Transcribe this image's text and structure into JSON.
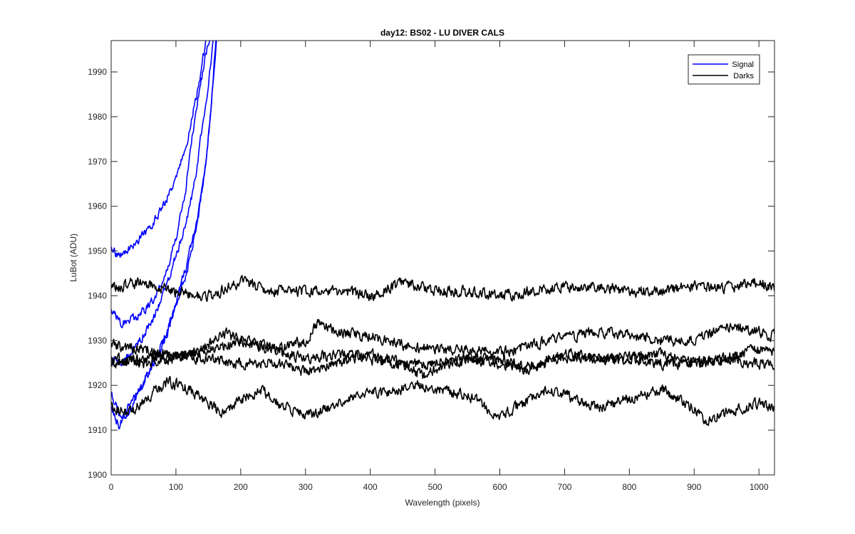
{
  "chart_data": {
    "type": "line",
    "title": "day12: BS02 - LU DIVER CALS",
    "xlabel": "Wavelength (pixels)",
    "ylabel": "LuBot (ADU)",
    "xlim": [
      0,
      1024
    ],
    "ylim": [
      1900,
      1997
    ],
    "xticks": [
      0,
      100,
      200,
      300,
      400,
      500,
      600,
      700,
      800,
      900,
      1000
    ],
    "yticks": [
      1900,
      1910,
      1920,
      1930,
      1940,
      1950,
      1960,
      1970,
      1980,
      1990
    ],
    "grid": false,
    "legend": {
      "position": "top-right",
      "entries": [
        {
          "label": "Signal",
          "color": "#0000ff"
        },
        {
          "label": "Darks",
          "color": "#000000"
        }
      ]
    },
    "series": [
      {
        "group": "Signal",
        "color": "#0000ff",
        "noise": 0.9,
        "seed": 11,
        "points": [
          [
            0,
            1951
          ],
          [
            10,
            1949
          ],
          [
            30,
            1951
          ],
          [
            60,
            1955
          ],
          [
            80,
            1960
          ],
          [
            100,
            1966
          ],
          [
            115,
            1973
          ],
          [
            125,
            1980
          ],
          [
            135,
            1987
          ],
          [
            142,
            1993
          ],
          [
            147,
            1998
          ]
        ]
      },
      {
        "group": "Signal",
        "color": "#0000ff",
        "noise": 0.9,
        "seed": 12,
        "points": [
          [
            0,
            1937
          ],
          [
            15,
            1934
          ],
          [
            40,
            1935
          ],
          [
            65,
            1939
          ],
          [
            85,
            1945
          ],
          [
            100,
            1953
          ],
          [
            115,
            1964
          ],
          [
            125,
            1975
          ],
          [
            135,
            1985
          ],
          [
            145,
            1993
          ],
          [
            152,
            1998
          ]
        ]
      },
      {
        "group": "Signal",
        "color": "#0000ff",
        "noise": 0.9,
        "seed": 13,
        "points": [
          [
            0,
            1926
          ],
          [
            15,
            1925
          ],
          [
            40,
            1929
          ],
          [
            65,
            1935
          ],
          [
            85,
            1942
          ],
          [
            100,
            1949
          ],
          [
            115,
            1956
          ],
          [
            130,
            1966
          ],
          [
            140,
            1977
          ],
          [
            150,
            1987
          ],
          [
            158,
            1998
          ]
        ]
      },
      {
        "group": "Signal",
        "color": "#0000ff",
        "noise": 0.9,
        "seed": 14,
        "points": [
          [
            0,
            1918
          ],
          [
            15,
            1913
          ],
          [
            35,
            1917
          ],
          [
            60,
            1923
          ],
          [
            85,
            1931
          ],
          [
            100,
            1938
          ],
          [
            115,
            1946
          ],
          [
            130,
            1955
          ],
          [
            145,
            1968
          ],
          [
            155,
            1983
          ],
          [
            162,
            1998
          ]
        ]
      },
      {
        "group": "Signal",
        "color": "#0000ff",
        "noise": 0.9,
        "seed": 15,
        "points": [
          [
            0,
            1915
          ],
          [
            12,
            1911
          ],
          [
            30,
            1915
          ],
          [
            55,
            1922
          ],
          [
            80,
            1930
          ],
          [
            100,
            1938
          ],
          [
            118,
            1946
          ],
          [
            135,
            1958
          ],
          [
            148,
            1972
          ],
          [
            158,
            1988
          ],
          [
            163,
            1998
          ]
        ]
      },
      {
        "group": "Darks",
        "color": "#000000",
        "noise": 1.2,
        "seed": 21,
        "points": [
          [
            0,
            1942
          ],
          [
            50,
            1943
          ],
          [
            100,
            1941
          ],
          [
            150,
            1940
          ],
          [
            200,
            1943
          ],
          [
            250,
            1941
          ],
          [
            300,
            1941
          ],
          [
            350,
            1941
          ],
          [
            400,
            1940
          ],
          [
            450,
            1943
          ],
          [
            500,
            1941
          ],
          [
            550,
            1941
          ],
          [
            600,
            1940
          ],
          [
            650,
            1941
          ],
          [
            700,
            1942
          ],
          [
            750,
            1942
          ],
          [
            800,
            1941
          ],
          [
            850,
            1941
          ],
          [
            900,
            1942
          ],
          [
            950,
            1942
          ],
          [
            1000,
            1943
          ],
          [
            1024,
            1942
          ]
        ]
      },
      {
        "group": "Darks",
        "color": "#000000",
        "noise": 1.2,
        "seed": 22,
        "points": [
          [
            0,
            1929
          ],
          [
            60,
            1928
          ],
          [
            100,
            1926
          ],
          [
            150,
            1928
          ],
          [
            200,
            1930
          ],
          [
            250,
            1928
          ],
          [
            300,
            1930
          ],
          [
            320,
            1934
          ],
          [
            350,
            1932
          ],
          [
            400,
            1931
          ],
          [
            450,
            1929
          ],
          [
            500,
            1928
          ],
          [
            550,
            1928
          ],
          [
            600,
            1927
          ],
          [
            650,
            1929
          ],
          [
            700,
            1931
          ],
          [
            760,
            1932
          ],
          [
            800,
            1931
          ],
          [
            850,
            1930
          ],
          [
            900,
            1930
          ],
          [
            950,
            1933
          ],
          [
            1000,
            1932
          ],
          [
            1024,
            1931
          ]
        ]
      },
      {
        "group": "Darks",
        "color": "#000000",
        "noise": 1.2,
        "seed": 23,
        "points": [
          [
            0,
            1926
          ],
          [
            50,
            1925
          ],
          [
            100,
            1926
          ],
          [
            150,
            1929
          ],
          [
            170,
            1932
          ],
          [
            200,
            1930
          ],
          [
            250,
            1928
          ],
          [
            300,
            1926
          ],
          [
            350,
            1927
          ],
          [
            400,
            1926
          ],
          [
            450,
            1924
          ],
          [
            500,
            1925
          ],
          [
            550,
            1926
          ],
          [
            600,
            1925
          ],
          [
            650,
            1924
          ],
          [
            700,
            1927
          ],
          [
            750,
            1926
          ],
          [
            800,
            1926
          ],
          [
            850,
            1925
          ],
          [
            900,
            1925
          ],
          [
            950,
            1926
          ],
          [
            1000,
            1928
          ],
          [
            1024,
            1927
          ]
        ]
      },
      {
        "group": "Darks",
        "color": "#000000",
        "noise": 1.2,
        "seed": 24,
        "points": [
          [
            0,
            1925
          ],
          [
            50,
            1926
          ],
          [
            100,
            1927
          ],
          [
            150,
            1926
          ],
          [
            200,
            1925
          ],
          [
            250,
            1925
          ],
          [
            300,
            1923
          ],
          [
            350,
            1925
          ],
          [
            400,
            1927
          ],
          [
            450,
            1925
          ],
          [
            480,
            1922
          ],
          [
            520,
            1925
          ],
          [
            550,
            1926
          ],
          [
            600,
            1926
          ],
          [
            640,
            1923
          ],
          [
            680,
            1926
          ],
          [
            750,
            1926
          ],
          [
            800,
            1926
          ],
          [
            850,
            1927
          ],
          [
            900,
            1925
          ],
          [
            950,
            1926
          ],
          [
            1000,
            1925
          ],
          [
            1024,
            1925
          ]
        ]
      },
      {
        "group": "Darks",
        "color": "#000000",
        "noise": 1.2,
        "seed": 25,
        "points": [
          [
            0,
            1915
          ],
          [
            30,
            1914
          ],
          [
            60,
            1918
          ],
          [
            90,
            1921
          ],
          [
            120,
            1919
          ],
          [
            150,
            1916
          ],
          [
            170,
            1914
          ],
          [
            200,
            1917
          ],
          [
            230,
            1919
          ],
          [
            260,
            1916
          ],
          [
            300,
            1913
          ],
          [
            350,
            1916
          ],
          [
            400,
            1918
          ],
          [
            450,
            1919
          ],
          [
            480,
            1920
          ],
          [
            500,
            1919
          ],
          [
            550,
            1918
          ],
          [
            600,
            1913
          ],
          [
            650,
            1917
          ],
          [
            670,
            1919
          ],
          [
            700,
            1918
          ],
          [
            750,
            1915
          ],
          [
            800,
            1917
          ],
          [
            850,
            1919
          ],
          [
            900,
            1915
          ],
          [
            920,
            1912
          ],
          [
            950,
            1914
          ],
          [
            1000,
            1916
          ],
          [
            1024,
            1915
          ]
        ]
      }
    ]
  }
}
